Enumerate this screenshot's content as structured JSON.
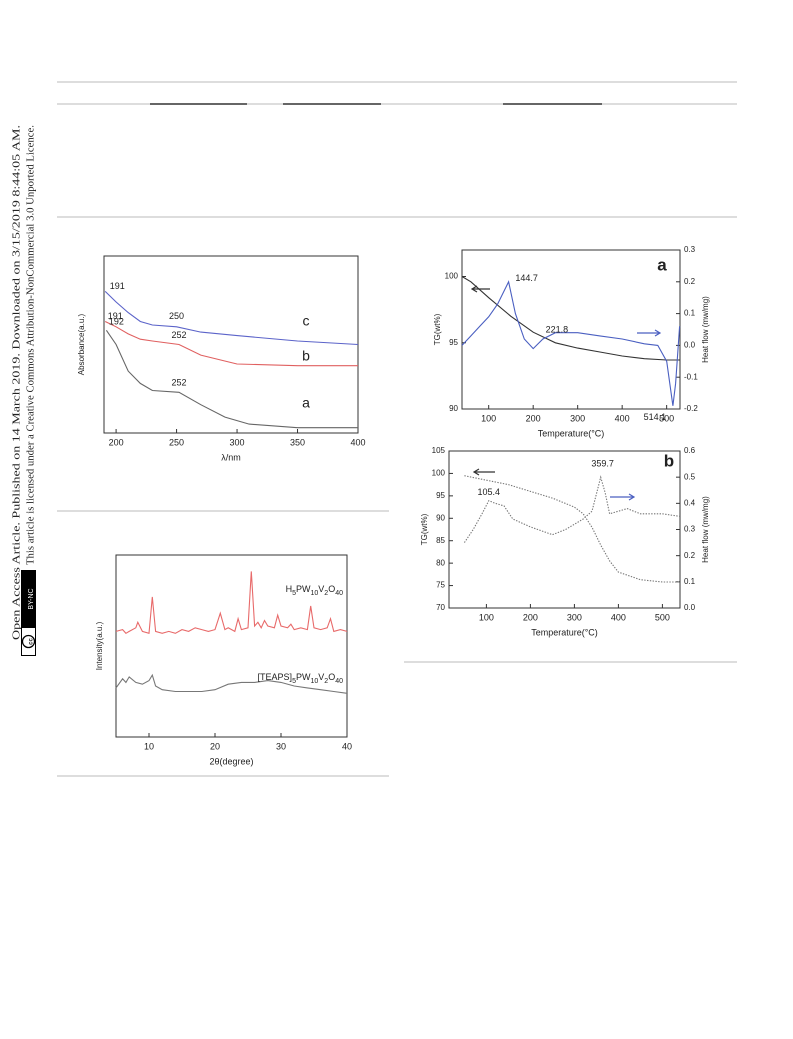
{
  "side_notice": {
    "line1": "Open Access Article. Published on 14 March 2019. Downloaded on 3/15/2019 8:44:05 AM.",
    "line2": "This article is licensed under a Creative Commons Attribution-NonCommercial 3.0 Unported Licence.",
    "badge_icon": "cc",
    "badge_label": "BY-NC"
  },
  "chart_data": [
    {
      "type": "line",
      "xlabel": "λ/nm",
      "ylabel": "Absorbance(a.u.)",
      "xlim": [
        190,
        400
      ],
      "xticks": [
        200,
        250,
        300,
        350,
        400
      ],
      "ylim": [
        0,
        1
      ],
      "series": [
        {
          "name": "c",
          "color": "#5b63c9",
          "x": [
            191,
            200,
            210,
            220,
            230,
            250,
            270,
            300,
            350,
            400
          ],
          "values": [
            0.8,
            0.74,
            0.68,
            0.63,
            0.61,
            0.6,
            0.57,
            0.55,
            0.52,
            0.5
          ],
          "peaks": [
            191,
            250
          ]
        },
        {
          "name": "b",
          "color": "#e06060",
          "x": [
            191,
            200,
            210,
            220,
            230,
            252,
            270,
            300,
            350,
            400
          ],
          "values": [
            0.63,
            0.6,
            0.56,
            0.53,
            0.52,
            0.5,
            0.44,
            0.39,
            0.38,
            0.38
          ],
          "peaks": [
            191,
            252
          ]
        },
        {
          "name": "a",
          "color": "#666666",
          "x": [
            192,
            200,
            210,
            220,
            230,
            252,
            270,
            290,
            310,
            350,
            400
          ],
          "values": [
            0.58,
            0.5,
            0.35,
            0.28,
            0.24,
            0.23,
            0.16,
            0.09,
            0.05,
            0.03,
            0.03
          ],
          "peaks": [
            192,
            252
          ]
        }
      ]
    },
    {
      "type": "line",
      "xlabel": "2θ(degree)",
      "ylabel": "Intensity(a.u.)",
      "xlim": [
        5,
        40
      ],
      "xticks": [
        10,
        20,
        30,
        40
      ],
      "ylim": [
        0,
        100
      ],
      "series": [
        {
          "name": "H5PW10V2O40",
          "color": "#e86a6a",
          "x": [
            5,
            6,
            6.5,
            7,
            8,
            8.3,
            9,
            10,
            10.5,
            11,
            12,
            13,
            14,
            15,
            16,
            17,
            18,
            19,
            20,
            20.8,
            21.5,
            22,
            23,
            23.5,
            24,
            25,
            25.5,
            26,
            26.5,
            27,
            27.5,
            28,
            29,
            29.5,
            30,
            31,
            31.5,
            32,
            33,
            34,
            34.5,
            35,
            36,
            37,
            37.5,
            38,
            39,
            40
          ],
          "values": [
            58,
            59,
            57,
            58,
            60,
            63,
            58,
            57,
            77,
            58,
            57,
            58,
            57,
            59,
            58,
            60,
            59,
            58,
            59,
            68,
            59,
            60,
            58,
            65,
            59,
            60,
            91,
            61,
            63,
            60,
            64,
            61,
            60,
            67,
            61,
            60,
            62,
            59,
            60,
            59,
            72,
            60,
            59,
            60,
            65,
            58,
            59,
            58
          ]
        },
        {
          "name": "[TEAPS]5PW10V2O40",
          "color": "#777777",
          "x": [
            5,
            6,
            6.5,
            7,
            8,
            9,
            10,
            10.5,
            11,
            12,
            14,
            16,
            18,
            20,
            22,
            24,
            26,
            28,
            30,
            32,
            34,
            36,
            38,
            40
          ],
          "values": [
            27,
            32,
            30,
            33,
            30,
            29,
            31,
            34,
            28,
            26,
            25,
            25,
            25,
            26,
            29,
            30,
            30,
            31,
            30,
            28,
            27,
            26,
            25,
            24
          ]
        }
      ]
    },
    {
      "type": "line",
      "panel_label": "a",
      "xlabel": "Temperature(°C)",
      "ylabel": "TG(wt%)",
      "y2label": "Heat flow (mw/mg)",
      "xlim": [
        40,
        530
      ],
      "xticks": [
        100,
        200,
        300,
        400,
        500
      ],
      "ylim": [
        90,
        102
      ],
      "yticks": [
        90,
        95,
        100
      ],
      "y2lim": [
        -0.2,
        0.3
      ],
      "y2ticks": [
        -0.2,
        -0.1,
        {
          "value": 0,
          "label": "0.0"
        },
        0.1,
        0.2,
        0.3
      ],
      "series": [
        {
          "color": "#333333",
          "x": [
            40,
            60,
            100,
            150,
            200,
            250,
            300,
            350,
            400,
            450,
            500,
            529
          ],
          "values": [
            100,
            99.6,
            98.4,
            97,
            95.8,
            95,
            94.6,
            94.3,
            94,
            93.8,
            93.7,
            93.7
          ]
        },
        {
          "color": "#4a5fc1",
          "axis": "y2",
          "x": [
            40,
            60,
            80,
            100,
            120,
            144.7,
            160,
            180,
            200,
            221.8,
            250,
            300,
            350,
            400,
            450,
            480,
            500,
            514.1,
            520,
            529
          ],
          "values": [
            0,
            0.03,
            0.06,
            0.09,
            0.13,
            0.2,
            0.1,
            0.02,
            -0.01,
            0.02,
            0.04,
            0.04,
            0.03,
            0.02,
            0.005,
            0,
            -0.05,
            -0.19,
            -0.12,
            0.06
          ],
          "peaks": [
            144.7,
            221.8,
            514.1
          ]
        }
      ]
    },
    {
      "type": "line",
      "panel_label": "b",
      "xlabel": "Temperature(°C)",
      "ylabel": "TG(wt%)",
      "y2label": "Heat flow (mw/mg)",
      "xlim": [
        15,
        540
      ],
      "xticks": [
        100,
        200,
        300,
        400,
        500
      ],
      "ylim": [
        70,
        105
      ],
      "yticks": [
        70,
        75,
        80,
        85,
        90,
        95,
        100,
        105
      ],
      "y2lim": [
        0,
        0.6
      ],
      "y2ticks": [
        {
          "value": 0,
          "label": "0.0"
        },
        0.1,
        0.2,
        0.3,
        0.4,
        0.5,
        0.6
      ],
      "series": [
        {
          "color": "#777777",
          "style": "dotted",
          "x": [
            50,
            100,
            150,
            200,
            250,
            300,
            320,
            340,
            360,
            380,
            400,
            450,
            500,
            540
          ],
          "values": [
            99.5,
            98.5,
            97.5,
            96,
            94.5,
            92.5,
            91,
            88,
            84,
            80.5,
            78,
            76.3,
            75.8,
            75.8
          ]
        },
        {
          "color": "#777777",
          "style": "dotted",
          "axis": "y2",
          "x": [
            50,
            70,
            90,
            105.4,
            120,
            140,
            160,
            200,
            250,
            280,
            320,
            340,
            359.7,
            370,
            380,
            400,
            420,
            450,
            500,
            540
          ],
          "values": [
            0.25,
            0.3,
            0.36,
            0.41,
            0.4,
            0.39,
            0.34,
            0.31,
            0.28,
            0.3,
            0.34,
            0.37,
            0.5,
            0.44,
            0.36,
            0.37,
            0.38,
            0.36,
            0.36,
            0.35
          ],
          "peaks": [
            105.4,
            359.7
          ]
        }
      ]
    }
  ]
}
